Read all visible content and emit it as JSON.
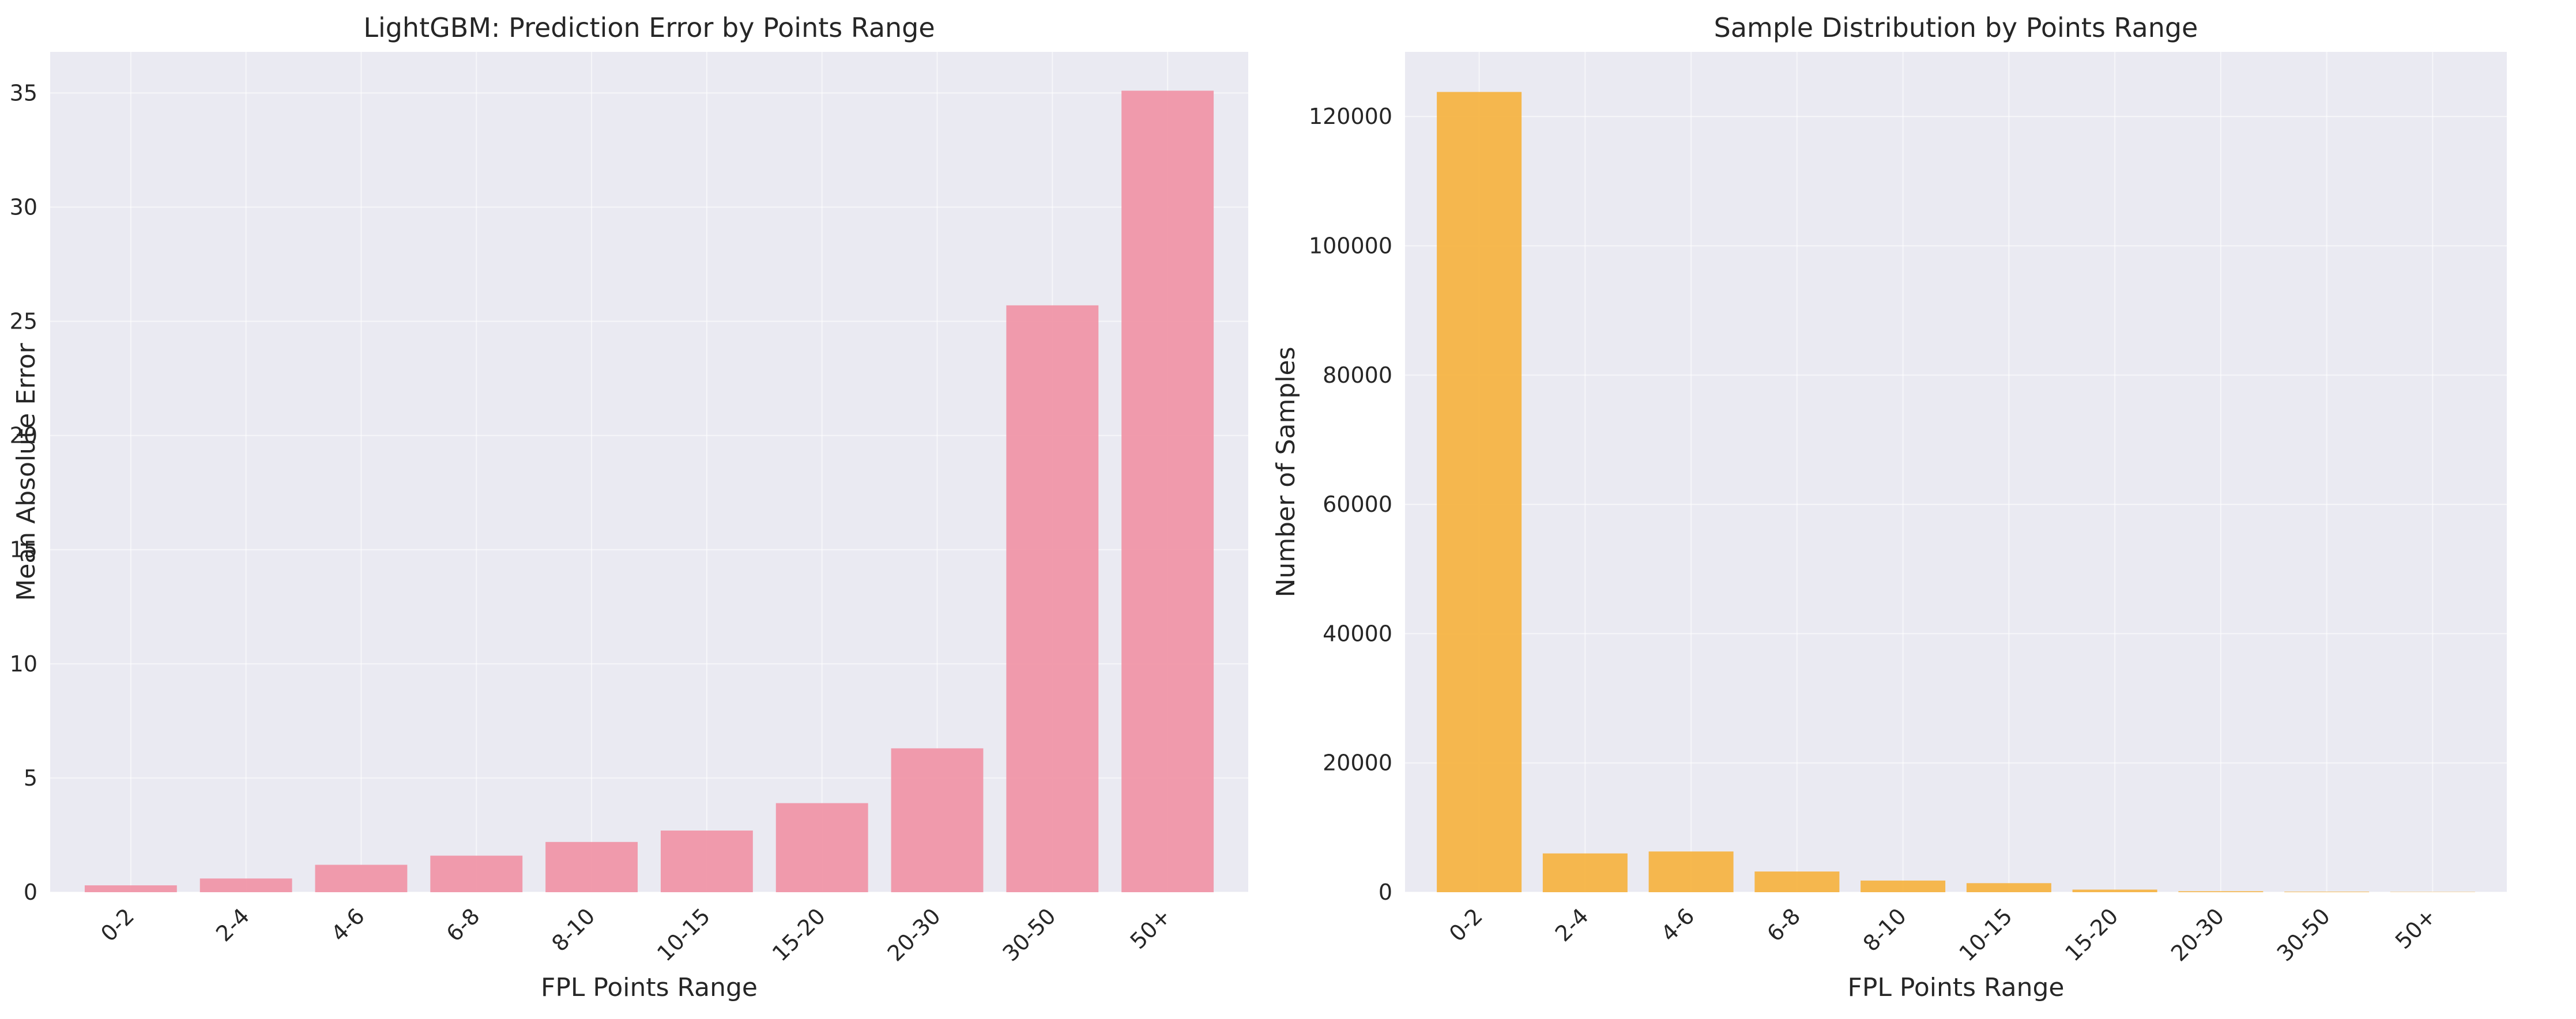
{
  "chart_data": [
    {
      "type": "bar",
      "title": "LightGBM: Prediction Error by Points Range",
      "xlabel": "FPL Points Range",
      "ylabel": "Mean Absolute Error",
      "categories": [
        "0-2",
        "2-4",
        "4-6",
        "6-8",
        "8-10",
        "10-15",
        "15-20",
        "20-30",
        "30-50",
        "50+"
      ],
      "values": [
        0.3,
        0.6,
        1.2,
        1.6,
        2.2,
        2.7,
        3.9,
        6.3,
        25.7,
        35.1
      ],
      "ylim": [
        0,
        36.8
      ],
      "yticks": [
        0,
        5,
        10,
        15,
        20,
        25,
        30,
        35
      ],
      "ytick_labels": [
        "0",
        "5",
        "10",
        "15",
        "20",
        "25",
        "30",
        "35"
      ],
      "color": "#f096a8",
      "grid": true
    },
    {
      "type": "bar",
      "title": "Sample Distribution by Points Range",
      "xlabel": "FPL Points Range",
      "ylabel": "Number of Samples",
      "categories": [
        "0-2",
        "2-4",
        "4-6",
        "6-8",
        "8-10",
        "10-15",
        "15-20",
        "20-30",
        "30-50",
        "50+"
      ],
      "values": [
        123800,
        6000,
        6300,
        3200,
        1800,
        1400,
        400,
        150,
        80,
        40
      ],
      "ylim": [
        0,
        130000
      ],
      "yticks": [
        0,
        20000,
        40000,
        60000,
        80000,
        100000,
        120000
      ],
      "ytick_labels": [
        "0",
        "20000",
        "40000",
        "60000",
        "80000",
        "100000",
        "120000"
      ],
      "color": "#f5b445",
      "grid": true
    }
  ],
  "colors": {
    "plot_background": "#eaeaf2",
    "grid": "#ffffff",
    "text": "#262626"
  }
}
